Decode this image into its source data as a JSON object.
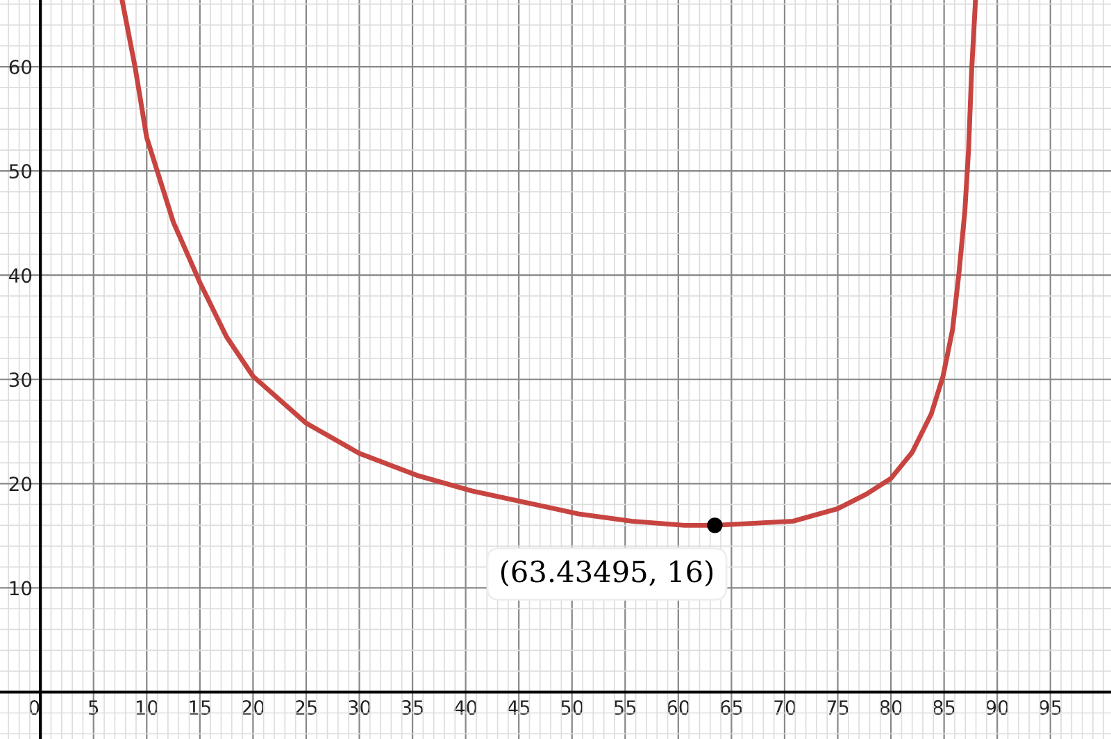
{
  "chart_data": {
    "type": "line",
    "xlim": [
      -3.8,
      100.7
    ],
    "ylim": [
      -4.5,
      66.4
    ],
    "xticks": [
      0,
      5,
      10,
      15,
      20,
      25,
      30,
      35,
      40,
      45,
      50,
      55,
      60,
      65,
      70,
      75,
      80,
      85,
      90,
      95
    ],
    "yticks": [
      10,
      20,
      30,
      40,
      50,
      60
    ],
    "grid": true,
    "series": [
      {
        "color": "#c74440",
        "x": [
          7.7,
          8.9,
          10,
          12.5,
          15,
          17.5,
          20,
          25,
          30,
          35.4,
          40.6,
          45.6,
          50.6,
          55.6,
          60.6,
          63.43495,
          70.8,
          75,
          77.7,
          80,
          82,
          83.8,
          84.9,
          85.8,
          86.4,
          86.95,
          87.3,
          87.6,
          87.95
        ],
        "values": [
          66.3,
          60,
          53.2,
          45.1,
          39.3,
          34.1,
          30.3,
          25.8,
          22.9,
          20.8,
          19.3,
          18.2,
          17.1,
          16.4,
          16.0,
          16,
          16.4,
          17.6,
          19.0,
          20.5,
          23.0,
          26.7,
          30.3,
          34.8,
          40.2,
          46.1,
          52.0,
          59.8,
          66.3
        ]
      },
      {
        "type": "scatter",
        "color": "#000000",
        "x": [
          63.43495
        ],
        "values": [
          16
        ]
      }
    ],
    "annotations": [
      {
        "text": "(63.43495, 16)",
        "x": 63.43495,
        "y": 16
      }
    ]
  }
}
